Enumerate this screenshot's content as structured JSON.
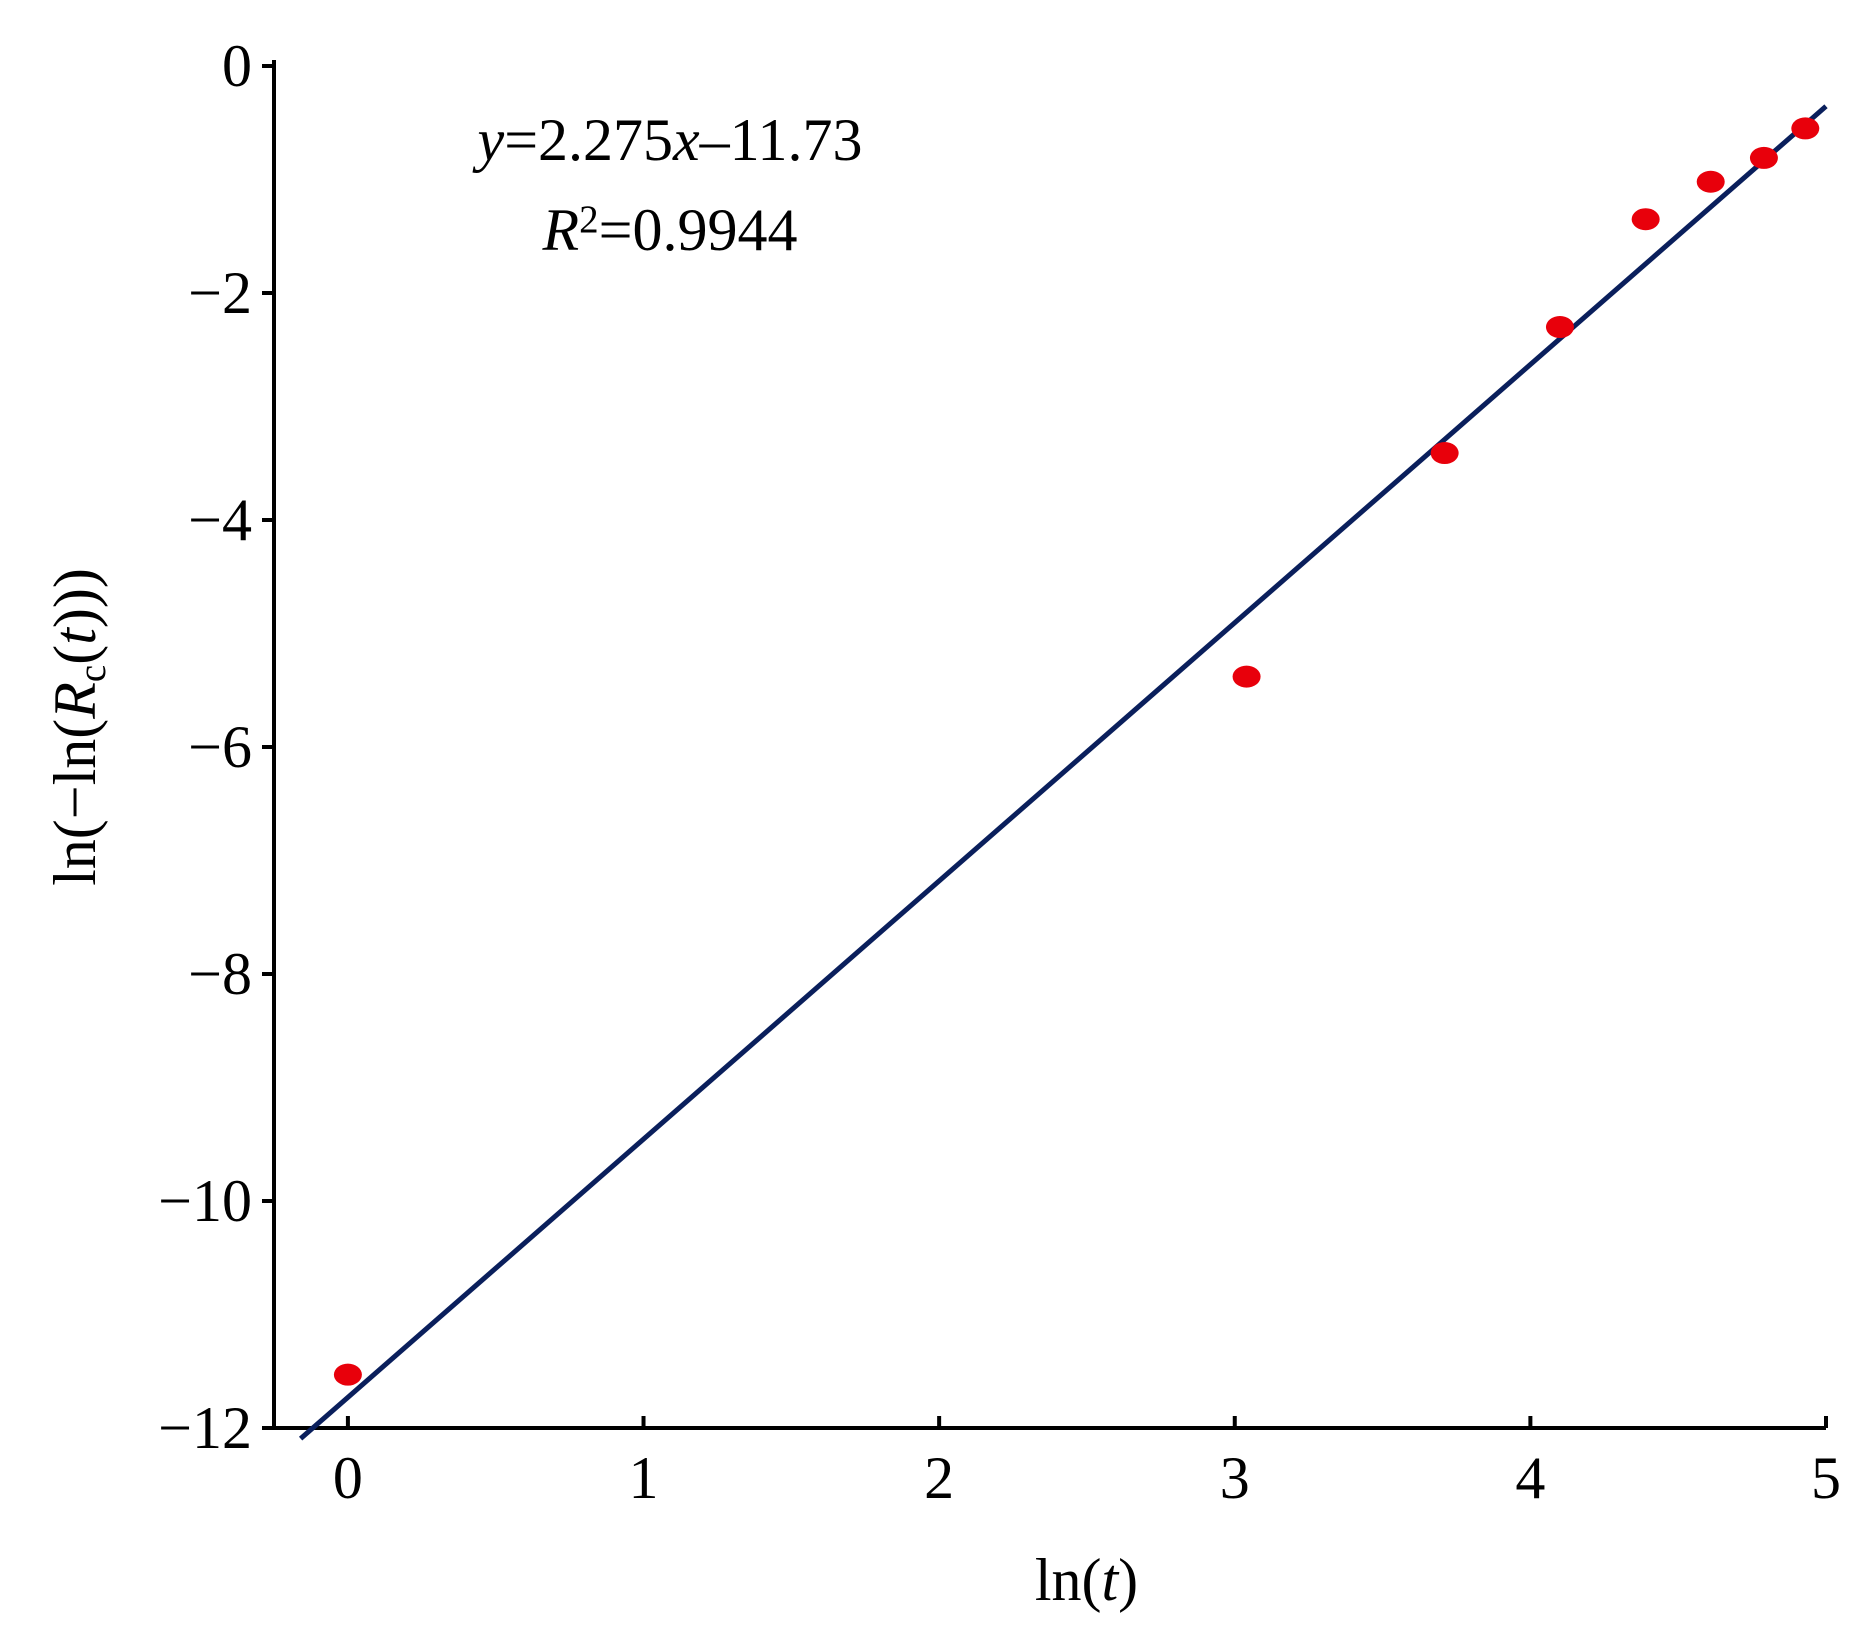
{
  "chart_data": {
    "type": "scatter",
    "x_label": [
      {
        "text": "ln("
      },
      {
        "text": "t",
        "italic": true
      },
      {
        "text": ")"
      }
    ],
    "y_label": [
      {
        "text": "ln(−ln("
      },
      {
        "text": "R",
        "italic": true
      },
      {
        "text": "c",
        "sub": true
      },
      {
        "text": "("
      },
      {
        "text": "t",
        "italic": true
      },
      {
        "text": ")))"
      }
    ],
    "annotation": [
      [
        {
          "text": "y",
          "italic": true
        },
        {
          "text": "=2.275"
        },
        {
          "text": "x",
          "italic": true
        },
        {
          "text": "–11.73"
        }
      ],
      [
        {
          "text": "R",
          "italic": true
        },
        {
          "text": "2",
          "sup": true
        },
        {
          "text": "=0.9944"
        }
      ]
    ],
    "x": [
      0,
      3.04,
      3.71,
      4.1,
      4.39,
      4.61,
      4.79,
      4.93
    ],
    "values": [
      -11.53,
      -5.38,
      -3.41,
      -2.3,
      -1.35,
      -1.02,
      -0.81,
      -0.55
    ],
    "color": "#e8000b",
    "fit": {
      "slope": 2.275,
      "intercept": -11.73,
      "x": [
        -0.16,
        5
      ],
      "color": "#0a1f5c"
    },
    "xlim": [
      -0.25,
      5
    ],
    "ylim": [
      -12,
      0
    ],
    "xticks": [
      0,
      1,
      2,
      3,
      4,
      5
    ],
    "yticks": [
      {
        "value": 0,
        "label": "0"
      },
      {
        "value": -2,
        "label": "−2"
      },
      {
        "value": -4,
        "label": "−4"
      },
      {
        "value": -6,
        "label": "−6"
      },
      {
        "value": -8,
        "label": "−8"
      },
      {
        "value": -10,
        "label": "−10"
      },
      {
        "value": -12,
        "label": "−12"
      }
    ]
  }
}
